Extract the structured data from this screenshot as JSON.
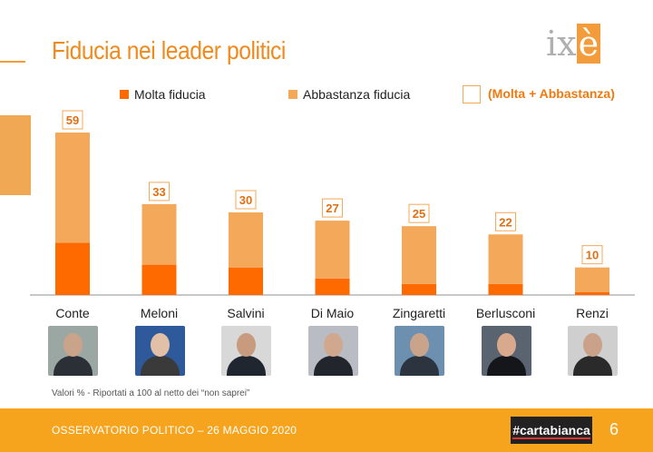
{
  "title": "Fiducia nei leader politici",
  "logo_text": "ix",
  "logo_accent": "è",
  "legend": {
    "molta": "Molta fiducia",
    "abbastanza": "Abbastanza fiducia",
    "totale": "(Molta + Abbastanza)"
  },
  "colors": {
    "molta": "#ff6a00",
    "abbastanza": "#f3a85a",
    "label_border": "#f3a85a",
    "label_text": "#e06f12",
    "footer": "#f6a41e"
  },
  "chart_data": {
    "type": "bar",
    "stacked": true,
    "categories": [
      "Conte",
      "Meloni",
      "Salvini",
      "Di Maio",
      "Zingaretti",
      "Berlusconi",
      "Renzi"
    ],
    "series": [
      {
        "name": "Molta fiducia",
        "values": [
          19,
          11,
          10,
          6,
          4,
          4,
          1
        ]
      },
      {
        "name": "Abbastanza fiducia",
        "values": [
          40,
          22,
          20,
          21,
          21,
          18,
          9
        ]
      }
    ],
    "totals": [
      59,
      33,
      30,
      27,
      25,
      22,
      10
    ],
    "ylim": [
      0,
      60
    ],
    "grid": false,
    "legend_position": "top"
  },
  "photos": [
    {
      "name": "Conte",
      "icon": "person-photo-icon",
      "bg": "#9aa7a3",
      "skin": "#c9a48a",
      "suit": "#2b2f36"
    },
    {
      "name": "Meloni",
      "icon": "person-photo-icon",
      "bg": "#2e5a9c",
      "skin": "#e2bfa7",
      "suit": "#3a3a3a"
    },
    {
      "name": "Salvini",
      "icon": "person-photo-icon",
      "bg": "#d8d8d8",
      "skin": "#c89a7e",
      "suit": "#1f2630"
    },
    {
      "name": "Di Maio",
      "icon": "person-photo-icon",
      "bg": "#b9bcc2",
      "skin": "#d0a88d",
      "suit": "#22252b"
    },
    {
      "name": "Zingaretti",
      "icon": "person-photo-icon",
      "bg": "#6d8fb0",
      "skin": "#c9a48a",
      "suit": "#2c3440"
    },
    {
      "name": "Berlusconi",
      "icon": "person-photo-icon",
      "bg": "#5a6470",
      "skin": "#d8a98d",
      "suit": "#14161a"
    },
    {
      "name": "Renzi",
      "icon": "person-photo-icon",
      "bg": "#cfcfcf",
      "skin": "#caa189",
      "suit": "#2a2a2a"
    }
  ],
  "note": "Valori % - Riportati a 100 al netto dei “non saprei”",
  "footer": {
    "text": "OSSERVATORIO POLITICO – 26 MAGGIO 2020",
    "brand": "#cartabianca",
    "page": "6"
  }
}
